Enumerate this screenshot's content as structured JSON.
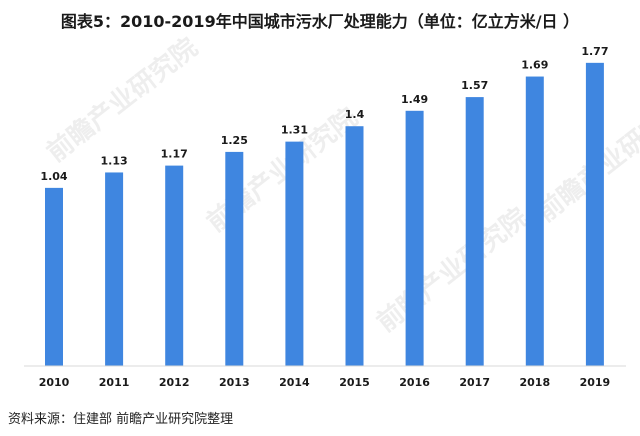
{
  "chart_data": {
    "type": "bar",
    "title": "图表5：2010-2019年中国城市污水厂处理能力（单位：亿立方米/日 ）",
    "categories": [
      "2010",
      "2011",
      "2012",
      "2013",
      "2014",
      "2015",
      "2016",
      "2017",
      "2018",
      "2019"
    ],
    "values": [
      1.04,
      1.13,
      1.17,
      1.25,
      1.31,
      1.4,
      1.49,
      1.57,
      1.69,
      1.77
    ],
    "value_labels": [
      "1.04",
      "1.13",
      "1.17",
      "1.25",
      "1.31",
      "1.4",
      "1.49",
      "1.57",
      "1.69",
      "1.77"
    ],
    "xlabel": "",
    "ylabel": "",
    "ylim": [
      0,
      1.88
    ],
    "grid": false,
    "bar_color": "#3f86e0"
  },
  "source": "资料来源：住建部 前瞻产业研究院整理",
  "watermark": "前瞻产业研究院"
}
